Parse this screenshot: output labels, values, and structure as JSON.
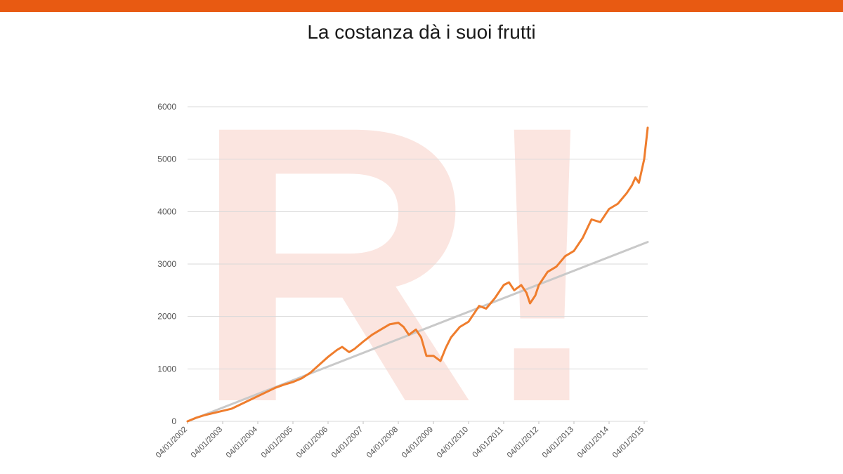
{
  "header": {
    "title": "La costanza dà i suoi frutti"
  },
  "colors": {
    "top_bar": "#e85a12",
    "series_investment": "#ef7d2d",
    "series_contributions": "#c9c9c9",
    "gridline": "#d9d9d9",
    "watermark_letter": "#fbe5e0",
    "watermark_mark": "#efefef"
  },
  "watermark": {
    "text": "R!"
  },
  "chart_data": {
    "type": "line",
    "title": "",
    "xlabel": "",
    "ylabel": "",
    "x": [
      "04/01/2002",
      "04/01/2003",
      "04/01/2004",
      "04/01/2005",
      "04/01/2006",
      "04/01/2007",
      "04/01/2008",
      "04/01/2009",
      "04/01/2010",
      "04/01/2011",
      "04/01/2012",
      "04/01/2013",
      "04/01/2014",
      "04/01/2015"
    ],
    "ylim": [
      0,
      6000
    ],
    "yticks": [
      0,
      1000,
      2000,
      3000,
      4000,
      5000,
      6000
    ],
    "grid": true,
    "legend": "none",
    "series": [
      {
        "color": "#ef7d2d",
        "points": [
          [
            2002.0,
            0
          ],
          [
            2002.25,
            70
          ],
          [
            2002.5,
            120
          ],
          [
            2002.75,
            160
          ],
          [
            2003.0,
            200
          ],
          [
            2003.25,
            240
          ],
          [
            2003.5,
            320
          ],
          [
            2003.75,
            400
          ],
          [
            2004.0,
            480
          ],
          [
            2004.25,
            560
          ],
          [
            2004.5,
            640
          ],
          [
            2004.75,
            700
          ],
          [
            2005.0,
            750
          ],
          [
            2005.25,
            820
          ],
          [
            2005.5,
            930
          ],
          [
            2005.75,
            1080
          ],
          [
            2006.0,
            1230
          ],
          [
            2006.25,
            1360
          ],
          [
            2006.4,
            1420
          ],
          [
            2006.6,
            1320
          ],
          [
            2006.75,
            1380
          ],
          [
            2007.0,
            1520
          ],
          [
            2007.25,
            1650
          ],
          [
            2007.5,
            1750
          ],
          [
            2007.75,
            1850
          ],
          [
            2008.0,
            1880
          ],
          [
            2008.15,
            1800
          ],
          [
            2008.3,
            1650
          ],
          [
            2008.5,
            1750
          ],
          [
            2008.65,
            1600
          ],
          [
            2008.8,
            1250
          ],
          [
            2009.0,
            1250
          ],
          [
            2009.2,
            1150
          ],
          [
            2009.35,
            1400
          ],
          [
            2009.5,
            1600
          ],
          [
            2009.75,
            1800
          ],
          [
            2010.0,
            1900
          ],
          [
            2010.15,
            2050
          ],
          [
            2010.3,
            2200
          ],
          [
            2010.5,
            2150
          ],
          [
            2010.75,
            2350
          ],
          [
            2011.0,
            2600
          ],
          [
            2011.15,
            2650
          ],
          [
            2011.3,
            2500
          ],
          [
            2011.5,
            2600
          ],
          [
            2011.65,
            2450
          ],
          [
            2011.75,
            2250
          ],
          [
            2011.9,
            2400
          ],
          [
            2012.0,
            2600
          ],
          [
            2012.25,
            2850
          ],
          [
            2012.5,
            2950
          ],
          [
            2012.75,
            3150
          ],
          [
            2013.0,
            3250
          ],
          [
            2013.25,
            3500
          ],
          [
            2013.5,
            3850
          ],
          [
            2013.75,
            3800
          ],
          [
            2014.0,
            4050
          ],
          [
            2014.25,
            4150
          ],
          [
            2014.5,
            4350
          ],
          [
            2014.65,
            4500
          ],
          [
            2014.75,
            4650
          ],
          [
            2014.85,
            4550
          ],
          [
            2015.0,
            5000
          ],
          [
            2015.1,
            5600
          ]
        ]
      },
      {
        "color": "#c9c9c9",
        "points": [
          [
            2002.0,
            0
          ],
          [
            2015.1,
            3420
          ]
        ]
      }
    ]
  }
}
